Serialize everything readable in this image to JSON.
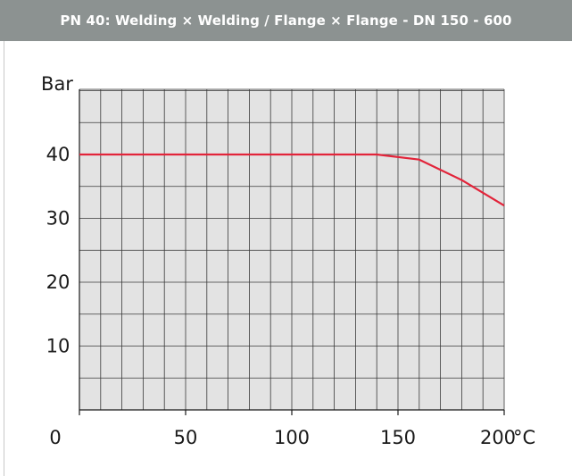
{
  "header": {
    "title": "PN 40:  Welding × Welding  /  Flange × Flange - DN 150 - 600"
  },
  "chart_data": {
    "type": "line",
    "title": "PN 40:  Welding × Welding  /  Flange × Flange - DN 150 - 600",
    "ylabel": "Bar",
    "xunit": "°C",
    "xlim": [
      0,
      200
    ],
    "ylim": [
      0,
      52
    ],
    "x_ticks": [
      0,
      50,
      100,
      150,
      200
    ],
    "x_tick_labels": [
      "0",
      "50",
      "100",
      "150",
      "200"
    ],
    "y_ticks": [
      10,
      20,
      30,
      40
    ],
    "y_tick_labels": [
      "10",
      "20",
      "30",
      "40"
    ],
    "grid": true,
    "grid_x_step": 10,
    "grid_y_step": 5,
    "colors": {
      "line": "#e2243a",
      "plot_bg": "#e3e3e3",
      "grid": "#3a3a3a",
      "header_bg": "#8c9291"
    },
    "series": [
      {
        "x": [
          0,
          140,
          160,
          180,
          200
        ],
        "y": [
          40,
          40,
          39.2,
          36,
          32
        ]
      }
    ]
  }
}
